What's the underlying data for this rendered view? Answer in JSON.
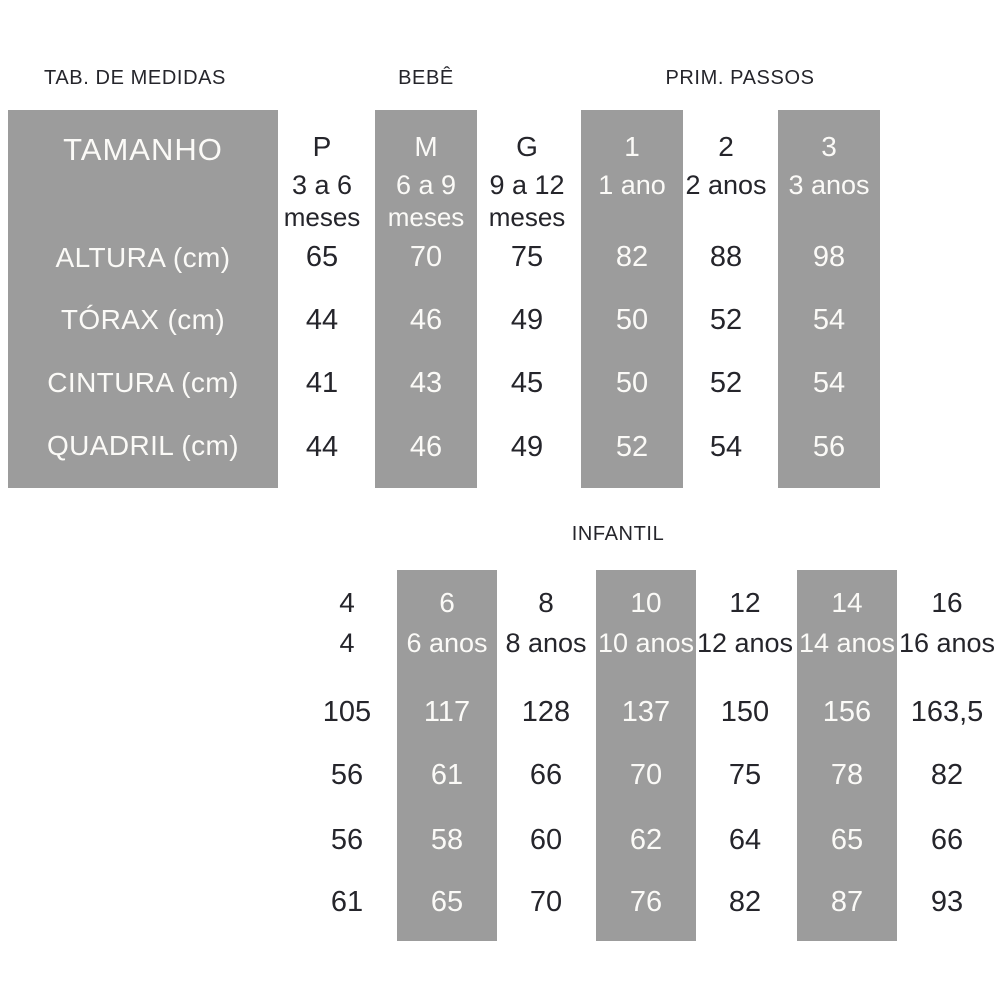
{
  "colors": {
    "background": "#ffffff",
    "highlight_gray": "#9c9c9c",
    "text_dark": "#25252b",
    "text_light": "#fbfaf7"
  },
  "headers": {
    "table_title": "TAB. DE MEDIDAS",
    "bebe": "BEBÊ",
    "prim_passos": "PRIM. PASSOS",
    "infantil": "INFANTIL"
  },
  "row_labels": {
    "size": "TAMANHO",
    "height": "ALTURA (cm)",
    "chest": "TÓRAX (cm)",
    "waist": "CINTURA (cm)",
    "hip": "QUADRIL (cm)"
  },
  "baby_table": {
    "row_order": [
      "ALTURA (cm)",
      "TÓRAX (cm)",
      "CINTURA (cm)",
      "QUADRIL (cm)"
    ],
    "columns": [
      {
        "size": "P",
        "age": "3 a 6",
        "age_unit": "meses",
        "highlighted": false,
        "values": [
          "65",
          "44",
          "41",
          "44"
        ]
      },
      {
        "size": "M",
        "age": "6 a 9",
        "age_unit": "meses",
        "highlighted": true,
        "values": [
          "70",
          "46",
          "43",
          "46"
        ]
      },
      {
        "size": "G",
        "age": "9 a 12",
        "age_unit": "meses",
        "highlighted": false,
        "values": [
          "75",
          "49",
          "45",
          "49"
        ]
      },
      {
        "size": "1",
        "age": "1 ano",
        "age_unit": "",
        "highlighted": true,
        "values": [
          "82",
          "50",
          "50",
          "52"
        ]
      },
      {
        "size": "2",
        "age": "2 anos",
        "age_unit": "",
        "highlighted": false,
        "values": [
          "88",
          "52",
          "52",
          "54"
        ]
      },
      {
        "size": "3",
        "age": "3 anos",
        "age_unit": "",
        "highlighted": true,
        "values": [
          "98",
          "54",
          "54",
          "56"
        ]
      }
    ]
  },
  "infantil_table": {
    "row_order": [
      "ALTURA (cm)",
      "TÓRAX (cm)",
      "CINTURA (cm)",
      "QUADRIL (cm)"
    ],
    "columns": [
      {
        "size": "4",
        "age": "4",
        "highlighted": false,
        "values": [
          "105",
          "56",
          "56",
          "61"
        ]
      },
      {
        "size": "6",
        "age": "6 anos",
        "highlighted": true,
        "values": [
          "117",
          "61",
          "58",
          "65"
        ]
      },
      {
        "size": "8",
        "age": "8 anos",
        "highlighted": false,
        "values": [
          "128",
          "66",
          "60",
          "70"
        ]
      },
      {
        "size": "10",
        "age": "10 anos",
        "highlighted": true,
        "values": [
          "137",
          "70",
          "62",
          "76"
        ]
      },
      {
        "size": "12",
        "age": "12 anos",
        "highlighted": false,
        "values": [
          "150",
          "75",
          "64",
          "82"
        ]
      },
      {
        "size": "14",
        "age": "14 anos",
        "highlighted": true,
        "values": [
          "156",
          "78",
          "65",
          "87"
        ]
      },
      {
        "size": "16",
        "age": "16 anos",
        "highlighted": false,
        "values": [
          "163,5",
          "82",
          "66",
          "93"
        ]
      }
    ]
  }
}
